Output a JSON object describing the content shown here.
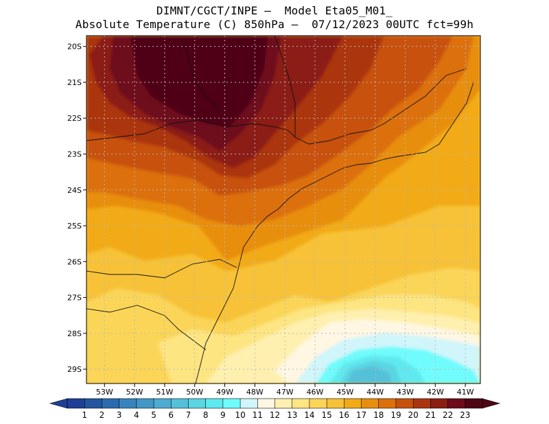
{
  "header": {
    "line1": "DIMNT/CGCT/INPE –  Model Eta05_M01_",
    "line2": "Absolute Temperature (C) 850hPa –  07/12/2023 00UTC fct=99h"
  },
  "map": {
    "lat_labels": [
      "20S",
      "21S",
      "22S",
      "23S",
      "24S",
      "25S",
      "26S",
      "27S",
      "28S",
      "29S"
    ],
    "lon_labels": [
      "53W",
      "52W",
      "51W",
      "50W",
      "49W",
      "48W",
      "47W",
      "46W",
      "45W",
      "44W",
      "43W",
      "42W",
      "41W"
    ],
    "lat_values": [
      -20,
      -21,
      -22,
      -23,
      -24,
      -25,
      -26,
      -27,
      -28,
      -29
    ],
    "lon_values": [
      -53,
      -52,
      -51,
      -50,
      -49,
      -48,
      -47,
      -46,
      -45,
      -44,
      -43,
      -42,
      -41
    ],
    "lon_range": [
      -53.6,
      -40.5
    ],
    "lat_range": [
      -29.4,
      -19.7
    ],
    "grid": true
  },
  "colorbar": {
    "labels": [
      "1",
      "2",
      "3",
      "4",
      "5",
      "6",
      "7",
      "8",
      "9",
      "10",
      "11",
      "12",
      "13",
      "14",
      "15",
      "16",
      "17",
      "18",
      "19",
      "20",
      "21",
      "22",
      "23"
    ],
    "colors": [
      "#1f3f96",
      "#23569f",
      "#2b6aae",
      "#3784bd",
      "#4197c6",
      "#4dabd1",
      "#55c0d9",
      "#5ad5e2",
      "#5ee9ef",
      "#6ffcfc",
      "#d0f5fa",
      "#fff7e3",
      "#fff0b0",
      "#fde582",
      "#fbd559",
      "#f7c238",
      "#f2aa16",
      "#e88e0e",
      "#dc700b",
      "#c7510b",
      "#ab3410",
      "#8b1d13",
      "#6e0b1d",
      "#4f0615"
    ]
  }
}
